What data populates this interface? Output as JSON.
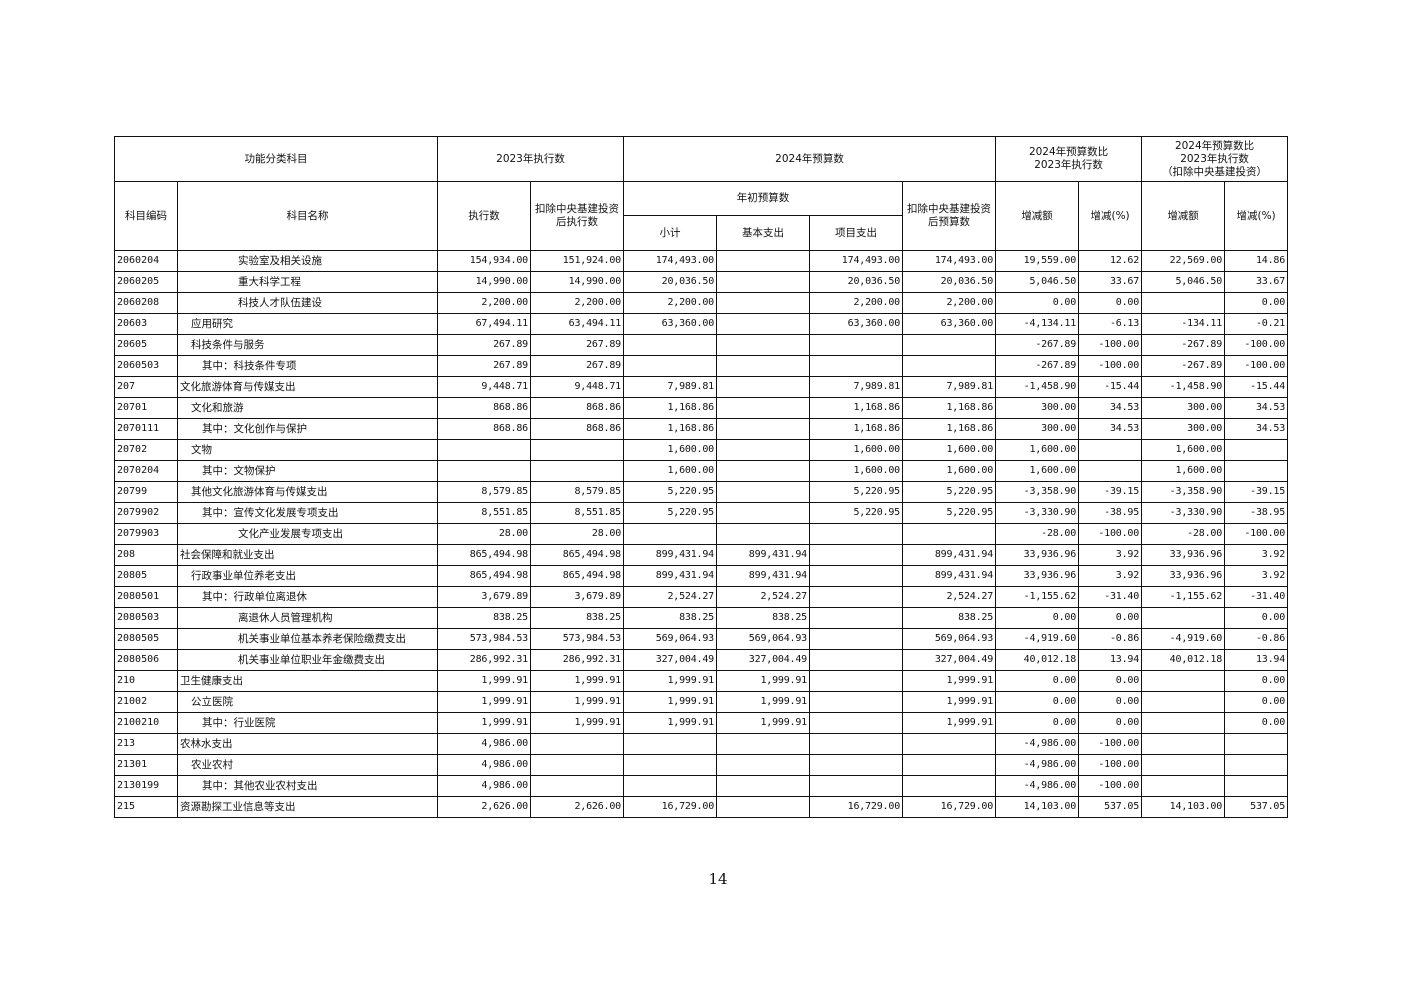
{
  "header": {
    "category": "功能分类科目",
    "exec2023": "2023年执行数",
    "budget2024": "2024年预算数",
    "cmp1": "2024年预算数比2023年执行数",
    "cmp2_line1": "2024年预算数比",
    "cmp2_line2": "2023年执行数",
    "cmp2_line3": "（扣除中央基建投资）",
    "code": "科目编码",
    "name": "科目名称",
    "exec": "执行数",
    "exec_excl": "扣除中央基建投资后执行数",
    "initial": "年初预算数",
    "budget_excl": "扣除中央基建投资后预算数",
    "subtotal": "小计",
    "basic": "基本支出",
    "project": "项目支出",
    "change_amt": "增减额",
    "change_pct": "增减(%)",
    "change_amt2": "增减额",
    "change_pct2": "增减(%)"
  },
  "rows": [
    {
      "code": "2060204",
      "name": "实验室及相关设施",
      "level": 3,
      "values": [
        "154,934.00",
        "151,924.00",
        "174,493.00",
        "",
        "174,493.00",
        "174,493.00",
        "19,559.00",
        "12.62",
        "22,569.00",
        "14.86"
      ]
    },
    {
      "code": "2060205",
      "name": "重大科学工程",
      "level": 3,
      "values": [
        "14,990.00",
        "14,990.00",
        "20,036.50",
        "",
        "20,036.50",
        "20,036.50",
        "5,046.50",
        "33.67",
        "5,046.50",
        "33.67"
      ]
    },
    {
      "code": "2060208",
      "name": "科技人才队伍建设",
      "level": 3,
      "values": [
        "2,200.00",
        "2,200.00",
        "2,200.00",
        "",
        "2,200.00",
        "2,200.00",
        "0.00",
        "0.00",
        "",
        "0.00"
      ]
    },
    {
      "code": "20603",
      "name": "应用研究",
      "level": 1,
      "values": [
        "67,494.11",
        "63,494.11",
        "63,360.00",
        "",
        "63,360.00",
        "63,360.00",
        "-4,134.11",
        "-6.13",
        "-134.11",
        "-0.21"
      ]
    },
    {
      "code": "20605",
      "name": "科技条件与服务",
      "level": 1,
      "values": [
        "267.89",
        "267.89",
        "",
        "",
        "",
        "",
        "-267.89",
        "-100.00",
        "-267.89",
        "-100.00"
      ]
    },
    {
      "code": "2060503",
      "name": "其中：科技条件专项",
      "level": 2,
      "values": [
        "267.89",
        "267.89",
        "",
        "",
        "",
        "",
        "-267.89",
        "-100.00",
        "-267.89",
        "-100.00"
      ]
    },
    {
      "code": "207",
      "name": "文化旅游体育与传媒支出",
      "level": 0,
      "values": [
        "9,448.71",
        "9,448.71",
        "7,989.81",
        "",
        "7,989.81",
        "7,989.81",
        "-1,458.90",
        "-15.44",
        "-1,458.90",
        "-15.44"
      ]
    },
    {
      "code": "20701",
      "name": "文化和旅游",
      "level": 1,
      "values": [
        "868.86",
        "868.86",
        "1,168.86",
        "",
        "1,168.86",
        "1,168.86",
        "300.00",
        "34.53",
        "300.00",
        "34.53"
      ]
    },
    {
      "code": "2070111",
      "name": "其中：文化创作与保护",
      "level": 2,
      "values": [
        "868.86",
        "868.86",
        "1,168.86",
        "",
        "1,168.86",
        "1,168.86",
        "300.00",
        "34.53",
        "300.00",
        "34.53"
      ]
    },
    {
      "code": "20702",
      "name": "文物",
      "level": 1,
      "values": [
        "",
        "",
        "1,600.00",
        "",
        "1,600.00",
        "1,600.00",
        "1,600.00",
        "",
        "1,600.00",
        ""
      ]
    },
    {
      "code": "2070204",
      "name": "其中：文物保护",
      "level": 2,
      "values": [
        "",
        "",
        "1,600.00",
        "",
        "1,600.00",
        "1,600.00",
        "1,600.00",
        "",
        "1,600.00",
        ""
      ]
    },
    {
      "code": "20799",
      "name": "其他文化旅游体育与传媒支出",
      "level": 1,
      "values": [
        "8,579.85",
        "8,579.85",
        "5,220.95",
        "",
        "5,220.95",
        "5,220.95",
        "-3,358.90",
        "-39.15",
        "-3,358.90",
        "-39.15"
      ]
    },
    {
      "code": "2079902",
      "name": "其中：宣传文化发展专项支出",
      "level": 2,
      "values": [
        "8,551.85",
        "8,551.85",
        "5,220.95",
        "",
        "5,220.95",
        "5,220.95",
        "-3,330.90",
        "-38.95",
        "-3,330.90",
        "-38.95"
      ]
    },
    {
      "code": "2079903",
      "name": "文化产业发展专项支出",
      "level": 3,
      "values": [
        "28.00",
        "28.00",
        "",
        "",
        "",
        "",
        "-28.00",
        "-100.00",
        "-28.00",
        "-100.00"
      ]
    },
    {
      "code": "208",
      "name": "社会保障和就业支出",
      "level": 0,
      "values": [
        "865,494.98",
        "865,494.98",
        "899,431.94",
        "899,431.94",
        "",
        "899,431.94",
        "33,936.96",
        "3.92",
        "33,936.96",
        "3.92"
      ]
    },
    {
      "code": "20805",
      "name": "行政事业单位养老支出",
      "level": 1,
      "values": [
        "865,494.98",
        "865,494.98",
        "899,431.94",
        "899,431.94",
        "",
        "899,431.94",
        "33,936.96",
        "3.92",
        "33,936.96",
        "3.92"
      ]
    },
    {
      "code": "2080501",
      "name": "其中：行政单位离退休",
      "level": 2,
      "values": [
        "3,679.89",
        "3,679.89",
        "2,524.27",
        "2,524.27",
        "",
        "2,524.27",
        "-1,155.62",
        "-31.40",
        "-1,155.62",
        "-31.40"
      ]
    },
    {
      "code": "2080503",
      "name": "离退休人员管理机构",
      "level": 3,
      "values": [
        "838.25",
        "838.25",
        "838.25",
        "838.25",
        "",
        "838.25",
        "0.00",
        "0.00",
        "",
        "0.00"
      ]
    },
    {
      "code": "2080505",
      "name": "机关事业单位基本养老保险缴费支出",
      "level": 3,
      "values": [
        "573,984.53",
        "573,984.53",
        "569,064.93",
        "569,064.93",
        "",
        "569,064.93",
        "-4,919.60",
        "-0.86",
        "-4,919.60",
        "-0.86"
      ]
    },
    {
      "code": "2080506",
      "name": "机关事业单位职业年金缴费支出",
      "level": 3,
      "values": [
        "286,992.31",
        "286,992.31",
        "327,004.49",
        "327,004.49",
        "",
        "327,004.49",
        "40,012.18",
        "13.94",
        "40,012.18",
        "13.94"
      ]
    },
    {
      "code": "210",
      "name": "卫生健康支出",
      "level": 0,
      "values": [
        "1,999.91",
        "1,999.91",
        "1,999.91",
        "1,999.91",
        "",
        "1,999.91",
        "0.00",
        "0.00",
        "",
        "0.00"
      ]
    },
    {
      "code": "21002",
      "name": "公立医院",
      "level": 1,
      "values": [
        "1,999.91",
        "1,999.91",
        "1,999.91",
        "1,999.91",
        "",
        "1,999.91",
        "0.00",
        "0.00",
        "",
        "0.00"
      ]
    },
    {
      "code": "2100210",
      "name": "其中：行业医院",
      "level": 2,
      "values": [
        "1,999.91",
        "1,999.91",
        "1,999.91",
        "1,999.91",
        "",
        "1,999.91",
        "0.00",
        "0.00",
        "",
        "0.00"
      ]
    },
    {
      "code": "213",
      "name": "农林水支出",
      "level": 0,
      "values": [
        "4,986.00",
        "",
        "",
        "",
        "",
        "",
        "-4,986.00",
        "-100.00",
        "",
        ""
      ]
    },
    {
      "code": "21301",
      "name": "农业农村",
      "level": 1,
      "values": [
        "4,986.00",
        "",
        "",
        "",
        "",
        "",
        "-4,986.00",
        "-100.00",
        "",
        ""
      ]
    },
    {
      "code": "2130199",
      "name": "其中：其他农业农村支出",
      "level": 2,
      "values": [
        "4,986.00",
        "",
        "",
        "",
        "",
        "",
        "-4,986.00",
        "-100.00",
        "",
        ""
      ]
    },
    {
      "code": "215",
      "name": "资源勘探工业信息等支出",
      "level": 0,
      "values": [
        "2,626.00",
        "2,626.00",
        "16,729.00",
        "",
        "16,729.00",
        "16,729.00",
        "14,103.00",
        "537.05",
        "14,103.00",
        "537.05"
      ]
    }
  ],
  "page_number": "14"
}
